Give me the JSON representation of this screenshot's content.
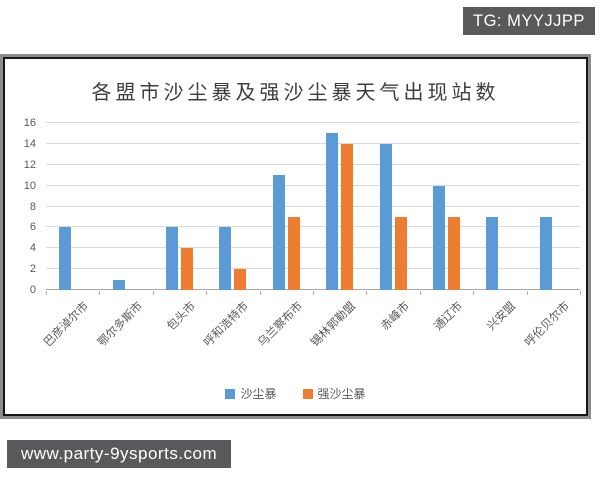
{
  "overlays": {
    "tg_badge": "TG: MYYJJPP",
    "website": "www.party-9ysports.com"
  },
  "colors": {
    "bar_blue": "#5B9BD5",
    "bar_orange": "#ED7D31",
    "watermark_bg": "#59595B",
    "gridline": "#D9D9D9",
    "axis_line": "#A6A6A6",
    "axis_text": "#595959",
    "title_text": "#3D3D3D"
  },
  "chart_data": {
    "type": "bar",
    "title": "各盟市沙尘暴及强沙尘暴天气出现站数",
    "categories": [
      "巴彦淖尔市",
      "鄂尔多斯市",
      "包头市",
      "呼和浩特市",
      "乌兰察布市",
      "锡林郭勒盟",
      "赤峰市",
      "通辽市",
      "兴安盟",
      "呼伦贝尔市"
    ],
    "series": [
      {
        "name": "沙尘暴",
        "color": "#5B9BD5",
        "values": [
          6,
          1,
          6,
          6,
          11,
          15,
          14,
          10,
          7,
          7
        ]
      },
      {
        "name": "强沙尘暴",
        "color": "#ED7D31",
        "values": [
          0,
          0,
          4,
          2,
          7,
          14,
          7,
          7,
          0,
          0
        ]
      }
    ],
    "xlabel": "",
    "ylabel": "",
    "ylim": [
      0,
      16
    ],
    "yticks": [
      0,
      2,
      4,
      6,
      8,
      10,
      12,
      14,
      16
    ],
    "grid": true,
    "legend_position": "bottom"
  }
}
